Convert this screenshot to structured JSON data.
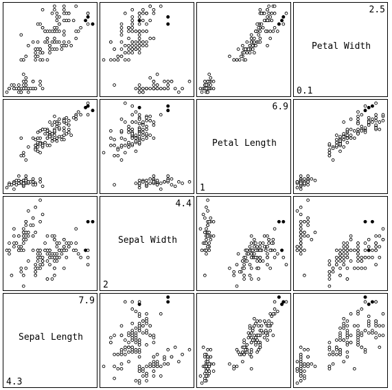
{
  "chart_data": {
    "type": "scatter",
    "variables": [
      {
        "name": "Petal Width",
        "min": "0.1",
        "max": "2.5",
        "lo": 0.1,
        "hi": 2.5
      },
      {
        "name": "Petal Length",
        "min": "1",
        "max": "6.9",
        "lo": 1.0,
        "hi": 6.9
      },
      {
        "name": "Sepal Width",
        "min": "2",
        "max": "4.4",
        "lo": 2.0,
        "hi": 4.4
      },
      {
        "name": "Sepal Length",
        "min": "4.3",
        "max": "7.9",
        "lo": 4.3,
        "hi": 7.9
      }
    ],
    "grid": false,
    "legend": "none",
    "highlight_color": "#000000",
    "point_color": "#000000",
    "highlighted_samples": [
      [
        2.0,
        6.4,
        3.8,
        7.9
      ],
      [
        2.2,
        6.7,
        3.8,
        7.7
      ],
      [
        2.1,
        6.6,
        3.0,
        7.6
      ]
    ],
    "samples": [
      [
        0.2,
        1.4,
        3.5,
        5.1
      ],
      [
        0.2,
        1.4,
        3.0,
        4.9
      ],
      [
        0.2,
        1.3,
        3.2,
        4.7
      ],
      [
        0.2,
        1.5,
        3.1,
        4.6
      ],
      [
        0.2,
        1.4,
        3.6,
        5.0
      ],
      [
        0.4,
        1.7,
        3.9,
        5.4
      ],
      [
        0.3,
        1.4,
        3.4,
        4.6
      ],
      [
        0.2,
        1.5,
        3.4,
        5.0
      ],
      [
        0.2,
        1.4,
        2.9,
        4.4
      ],
      [
        0.1,
        1.5,
        3.1,
        4.9
      ],
      [
        0.2,
        1.5,
        3.7,
        5.4
      ],
      [
        0.2,
        1.6,
        3.4,
        4.8
      ],
      [
        0.1,
        1.4,
        3.0,
        4.8
      ],
      [
        0.1,
        1.1,
        3.0,
        4.3
      ],
      [
        0.2,
        1.2,
        4.0,
        5.8
      ],
      [
        0.4,
        1.5,
        4.4,
        5.7
      ],
      [
        0.4,
        1.3,
        3.9,
        5.4
      ],
      [
        0.3,
        1.4,
        3.5,
        5.1
      ],
      [
        0.3,
        1.7,
        3.8,
        5.7
      ],
      [
        0.3,
        1.5,
        3.8,
        5.1
      ],
      [
        0.2,
        1.7,
        3.4,
        5.4
      ],
      [
        0.4,
        1.5,
        3.7,
        5.1
      ],
      [
        0.2,
        1.0,
        3.6,
        4.6
      ],
      [
        0.5,
        1.7,
        3.3,
        5.1
      ],
      [
        0.2,
        1.9,
        3.4,
        4.8
      ],
      [
        0.2,
        1.6,
        3.0,
        5.0
      ],
      [
        0.4,
        1.6,
        3.4,
        5.0
      ],
      [
        0.2,
        1.5,
        3.5,
        5.2
      ],
      [
        0.2,
        1.4,
        3.4,
        5.2
      ],
      [
        0.2,
        1.6,
        3.2,
        4.7
      ],
      [
        0.2,
        1.6,
        3.1,
        4.8
      ],
      [
        0.4,
        1.5,
        3.4,
        5.4
      ],
      [
        0.1,
        1.5,
        4.1,
        5.2
      ],
      [
        0.2,
        1.4,
        4.2,
        5.5
      ],
      [
        0.1,
        1.5,
        3.1,
        4.9
      ],
      [
        0.2,
        1.2,
        3.2,
        5.0
      ],
      [
        0.2,
        1.3,
        3.5,
        5.5
      ],
      [
        0.1,
        1.5,
        3.1,
        4.9
      ],
      [
        0.2,
        1.3,
        3.0,
        4.4
      ],
      [
        0.2,
        1.5,
        3.4,
        5.1
      ],
      [
        0.3,
        1.3,
        3.5,
        5.0
      ],
      [
        0.3,
        1.3,
        2.3,
        4.5
      ],
      [
        0.2,
        1.3,
        3.2,
        4.4
      ],
      [
        0.6,
        1.6,
        3.5,
        5.0
      ],
      [
        0.4,
        1.9,
        3.8,
        5.1
      ],
      [
        0.3,
        1.4,
        3.0,
        4.8
      ],
      [
        0.2,
        1.6,
        3.8,
        5.1
      ],
      [
        0.2,
        1.4,
        3.2,
        4.6
      ],
      [
        0.2,
        1.5,
        3.7,
        5.3
      ],
      [
        0.2,
        1.4,
        3.3,
        5.0
      ],
      [
        1.4,
        4.7,
        3.2,
        7.0
      ],
      [
        1.5,
        4.5,
        3.2,
        6.4
      ],
      [
        1.5,
        4.9,
        3.1,
        6.9
      ],
      [
        1.3,
        4.0,
        2.3,
        5.5
      ],
      [
        1.5,
        4.6,
        2.8,
        6.5
      ],
      [
        1.3,
        4.5,
        2.8,
        5.7
      ],
      [
        1.6,
        4.7,
        3.3,
        6.3
      ],
      [
        1.0,
        3.3,
        2.4,
        4.9
      ],
      [
        1.3,
        4.6,
        2.9,
        6.6
      ],
      [
        1.4,
        3.9,
        2.7,
        5.2
      ],
      [
        1.0,
        3.5,
        2.0,
        5.0
      ],
      [
        1.5,
        4.2,
        3.0,
        5.9
      ],
      [
        1.0,
        4.0,
        2.2,
        6.0
      ],
      [
        1.4,
        4.7,
        2.9,
        6.1
      ],
      [
        1.3,
        3.6,
        2.9,
        5.6
      ],
      [
        1.4,
        4.4,
        3.1,
        6.7
      ],
      [
        1.5,
        4.5,
        3.0,
        5.6
      ],
      [
        1.0,
        4.1,
        2.7,
        5.8
      ],
      [
        1.5,
        4.5,
        2.2,
        6.2
      ],
      [
        1.1,
        3.9,
        2.5,
        5.6
      ],
      [
        1.8,
        4.8,
        3.2,
        5.9
      ],
      [
        1.3,
        4.0,
        2.8,
        6.1
      ],
      [
        1.5,
        4.9,
        2.5,
        6.3
      ],
      [
        1.2,
        4.7,
        2.8,
        6.1
      ],
      [
        1.3,
        4.3,
        2.9,
        6.4
      ],
      [
        1.4,
        4.4,
        3.0,
        6.6
      ],
      [
        1.4,
        4.8,
        2.8,
        6.8
      ],
      [
        1.7,
        5.0,
        3.0,
        6.7
      ],
      [
        1.5,
        4.5,
        2.9,
        6.0
      ],
      [
        1.0,
        3.5,
        2.6,
        5.7
      ],
      [
        1.1,
        3.8,
        2.4,
        5.5
      ],
      [
        1.0,
        3.7,
        2.4,
        5.5
      ],
      [
        1.2,
        3.9,
        2.7,
        5.8
      ],
      [
        1.6,
        5.1,
        2.7,
        6.0
      ],
      [
        1.5,
        4.5,
        3.0,
        5.4
      ],
      [
        1.6,
        4.5,
        3.4,
        6.0
      ],
      [
        1.5,
        4.7,
        3.1,
        6.7
      ],
      [
        1.3,
        4.4,
        2.3,
        6.3
      ],
      [
        1.3,
        4.1,
        3.0,
        5.6
      ],
      [
        1.3,
        4.0,
        2.5,
        5.5
      ],
      [
        1.2,
        4.4,
        2.6,
        5.5
      ],
      [
        1.4,
        4.6,
        3.0,
        6.1
      ],
      [
        1.2,
        4.0,
        2.6,
        5.8
      ],
      [
        1.0,
        3.3,
        2.3,
        5.0
      ],
      [
        1.3,
        4.2,
        2.7,
        5.6
      ],
      [
        1.2,
        4.2,
        3.0,
        5.7
      ],
      [
        1.3,
        4.2,
        2.9,
        5.7
      ],
      [
        1.3,
        4.3,
        2.9,
        6.2
      ],
      [
        1.1,
        3.0,
        2.5,
        5.1
      ],
      [
        1.3,
        4.1,
        2.8,
        5.7
      ],
      [
        2.5,
        6.0,
        3.3,
        6.3
      ],
      [
        1.9,
        5.1,
        2.7,
        5.8
      ],
      [
        2.1,
        5.9,
        3.0,
        7.1
      ],
      [
        1.8,
        5.6,
        2.9,
        6.3
      ],
      [
        2.2,
        5.8,
        3.0,
        6.5
      ],
      [
        2.1,
        6.6,
        3.0,
        7.6
      ],
      [
        1.7,
        4.5,
        2.5,
        4.9
      ],
      [
        1.8,
        6.3,
        2.9,
        7.3
      ],
      [
        1.8,
        5.8,
        2.5,
        6.7
      ],
      [
        2.5,
        6.1,
        3.6,
        7.2
      ],
      [
        2.0,
        5.1,
        3.2,
        6.5
      ],
      [
        1.9,
        5.3,
        2.7,
        6.4
      ],
      [
        2.1,
        5.5,
        3.0,
        6.8
      ],
      [
        2.0,
        5.0,
        2.5,
        5.7
      ],
      [
        2.4,
        5.1,
        2.8,
        5.8
      ],
      [
        2.3,
        5.3,
        3.2,
        6.4
      ],
      [
        1.8,
        5.5,
        3.0,
        6.5
      ],
      [
        2.2,
        6.7,
        3.8,
        7.7
      ],
      [
        2.3,
        6.9,
        2.6,
        7.7
      ],
      [
        1.5,
        5.0,
        2.2,
        6.0
      ],
      [
        2.3,
        5.7,
        3.2,
        6.9
      ],
      [
        2.0,
        4.9,
        2.8,
        5.6
      ],
      [
        2.0,
        6.7,
        2.8,
        7.7
      ],
      [
        1.8,
        4.9,
        2.7,
        6.3
      ],
      [
        2.1,
        5.7,
        3.3,
        6.7
      ],
      [
        1.8,
        6.0,
        3.2,
        7.2
      ],
      [
        1.8,
        4.8,
        2.8,
        6.2
      ],
      [
        1.8,
        4.9,
        3.0,
        6.1
      ],
      [
        2.1,
        5.6,
        2.8,
        6.4
      ],
      [
        1.6,
        5.8,
        3.0,
        7.2
      ],
      [
        1.9,
        6.1,
        2.8,
        7.4
      ],
      [
        2.0,
        6.4,
        3.8,
        7.9
      ],
      [
        2.2,
        5.6,
        2.8,
        6.4
      ],
      [
        1.5,
        5.1,
        2.8,
        6.3
      ],
      [
        1.4,
        5.6,
        2.6,
        6.1
      ],
      [
        2.3,
        6.1,
        3.0,
        7.7
      ],
      [
        2.4,
        5.6,
        3.4,
        6.3
      ],
      [
        1.8,
        5.5,
        3.1,
        6.4
      ],
      [
        1.8,
        4.8,
        3.0,
        6.0
      ],
      [
        2.1,
        5.4,
        3.1,
        6.9
      ],
      [
        2.4,
        5.6,
        3.1,
        6.7
      ],
      [
        2.3,
        5.1,
        3.1,
        6.9
      ],
      [
        1.9,
        5.1,
        2.7,
        5.8
      ],
      [
        2.3,
        5.9,
        3.2,
        6.8
      ],
      [
        2.5,
        5.7,
        3.3,
        6.7
      ],
      [
        2.3,
        5.2,
        3.0,
        6.7
      ],
      [
        1.9,
        5.0,
        2.5,
        6.3
      ],
      [
        2.0,
        5.2,
        3.0,
        6.5
      ],
      [
        2.3,
        5.4,
        3.4,
        6.2
      ],
      [
        1.8,
        5.1,
        3.0,
        5.9
      ]
    ]
  }
}
